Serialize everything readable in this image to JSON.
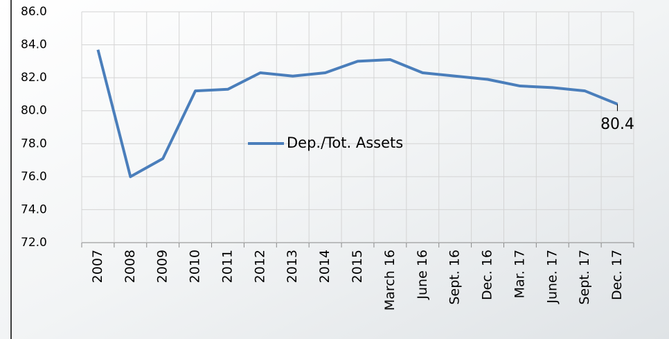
{
  "chart_data": {
    "type": "line",
    "categories": [
      "2007",
      "2008",
      "2009",
      "2010",
      "2011",
      "2012",
      "2013",
      "2014",
      "2015",
      "March 16",
      "June 16",
      "Sept. 16",
      "Dec. 16",
      "Mar. 17",
      "June. 17",
      "Sept. 17",
      "Dec. 17"
    ],
    "series": [
      {
        "name": "Dep./Tot. Assets",
        "color": "#4a7ebb",
        "values": [
          83.7,
          76.0,
          77.1,
          81.2,
          81.3,
          82.3,
          82.1,
          82.3,
          83.0,
          83.1,
          82.3,
          82.1,
          81.9,
          81.5,
          81.4,
          81.2,
          80.4
        ]
      }
    ],
    "ylim": [
      72,
      86
    ],
    "yticks": [
      {
        "value": 72,
        "label": "72.0"
      },
      {
        "value": 74,
        "label": "74.0"
      },
      {
        "value": 76,
        "label": "76.0"
      },
      {
        "value": 78,
        "label": "78.0"
      },
      {
        "value": 80,
        "label": "80.0"
      },
      {
        "value": 82,
        "label": "82.0"
      },
      {
        "value": 84,
        "label": "84.0"
      },
      {
        "value": 86,
        "label": "86.0"
      }
    ],
    "grid": true
  }
}
